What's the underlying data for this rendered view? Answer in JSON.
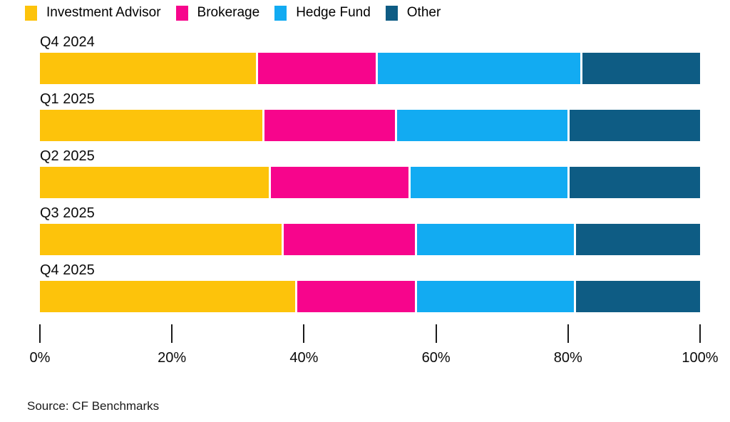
{
  "legend": {
    "items": [
      {
        "label": "Investment Advisor",
        "color": "#FDC30B"
      },
      {
        "label": "Brokerage",
        "color": "#F7058C"
      },
      {
        "label": "Hedge Fund",
        "color": "#12ABF2"
      },
      {
        "label": "Other",
        "color": "#0E5C84"
      }
    ]
  },
  "chart_data": {
    "type": "bar",
    "stacked": true,
    "orientation": "horizontal",
    "categories": [
      "Q4 2024",
      "Q1 2025",
      "Q2 2025",
      "Q3 2025",
      "Q4 2025"
    ],
    "series": [
      {
        "name": "Investment Advisor",
        "color": "#FDC30B",
        "values": [
          33,
          34,
          35,
          37,
          39
        ]
      },
      {
        "name": "Brokerage",
        "color": "#F7058C",
        "values": [
          18,
          20,
          21,
          20,
          18
        ]
      },
      {
        "name": "Hedge Fund",
        "color": "#12ABF2",
        "values": [
          31,
          26,
          24,
          24,
          24
        ]
      },
      {
        "name": "Other",
        "color": "#0E5C84",
        "values": [
          18,
          20,
          20,
          19,
          19
        ]
      }
    ],
    "x_axis": {
      "range": [
        0,
        100
      ],
      "unit": "%",
      "ticks": [
        "0%",
        "20%",
        "40%",
        "60%",
        "80%",
        "100%"
      ]
    },
    "legend_position": "top",
    "grid": false,
    "title": "",
    "xlabel": "",
    "ylabel": ""
  },
  "source": {
    "text": "Source: CF Benchmarks"
  }
}
